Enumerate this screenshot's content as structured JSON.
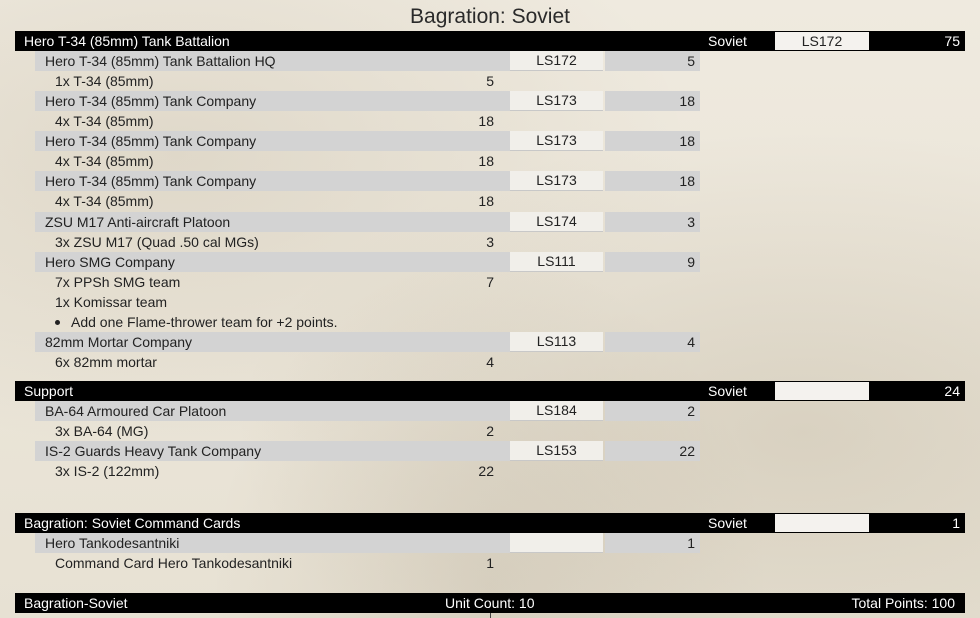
{
  "title": "Bagration: Soviet",
  "sections": [
    {
      "name": "Hero T-34 (85mm) Tank Battalion",
      "nation": "Soviet",
      "code": "LS172",
      "points": "75",
      "units": [
        {
          "name": "Hero T-34 (85mm) Tank Battalion HQ",
          "code": "LS172",
          "points": "5",
          "lines": [
            {
              "text": "1x T-34 (85mm)",
              "points": "5"
            }
          ]
        },
        {
          "name": "Hero T-34 (85mm) Tank Company",
          "code": "LS173",
          "points": "18",
          "lines": [
            {
              "text": "4x T-34 (85mm)",
              "points": "18"
            }
          ]
        },
        {
          "name": "Hero T-34 (85mm) Tank Company",
          "code": "LS173",
          "points": "18",
          "lines": [
            {
              "text": "4x T-34 (85mm)",
              "points": "18"
            }
          ]
        },
        {
          "name": "Hero T-34 (85mm) Tank Company",
          "code": "LS173",
          "points": "18",
          "lines": [
            {
              "text": "4x T-34 (85mm)",
              "points": "18"
            }
          ]
        },
        {
          "name": "ZSU M17 Anti-aircraft Platoon",
          "code": "LS174",
          "points": "3",
          "lines": [
            {
              "text": "3x ZSU M17 (Quad .50 cal MGs)",
              "points": "3"
            }
          ]
        },
        {
          "name": "Hero SMG Company",
          "code": "LS111",
          "points": "9",
          "lines": [
            {
              "text": "7x PPSh SMG team",
              "points": "7"
            },
            {
              "text": "1x Komissar team",
              "points": ""
            }
          ],
          "bullet": "Add one Flame-thrower team for +2 points."
        },
        {
          "name": "82mm Mortar Company",
          "code": "LS113",
          "points": "4",
          "lines": [
            {
              "text": "6x 82mm mortar",
              "points": "4"
            }
          ]
        }
      ]
    },
    {
      "name": "Support",
      "nation": "Soviet",
      "code": "",
      "points": "24",
      "units": [
        {
          "name": "BA-64 Armoured Car Platoon",
          "code": "LS184",
          "points": "2",
          "lines": [
            {
              "text": "3x BA-64 (MG)",
              "points": "2"
            }
          ]
        },
        {
          "name": "IS-2 Guards Heavy Tank Company",
          "code": "LS153",
          "points": "22",
          "lines": [
            {
              "text": "3x IS-2 (122mm)",
              "points": "22"
            }
          ]
        }
      ]
    },
    {
      "name": "Bagration: Soviet Command Cards",
      "nation": "Soviet",
      "code": "",
      "points": "1",
      "units": [
        {
          "name": "Hero Tankodesantniki",
          "code": "",
          "points": "1",
          "lines": [
            {
              "text": "Command Card Hero Tankodesantniki",
              "points": "1"
            }
          ]
        }
      ]
    }
  ],
  "footer": {
    "army": "Bagration-Soviet",
    "unit_count": "Unit Count: 10",
    "total_points": "Total Points: 100"
  }
}
